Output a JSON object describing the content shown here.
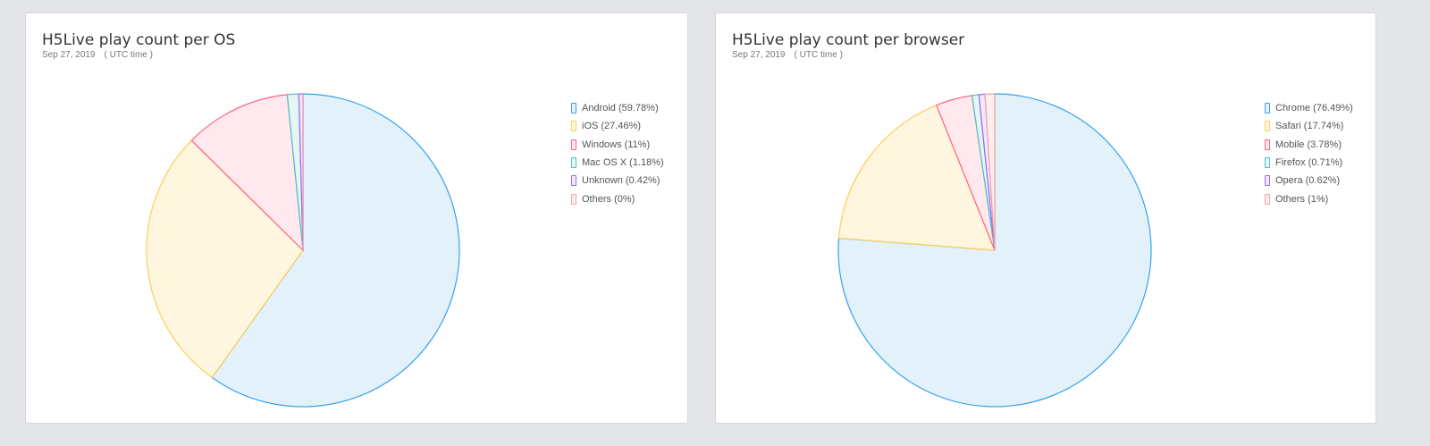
{
  "chart_data": [
    {
      "type": "pie",
      "title": "H5Live play count per OS",
      "date": "Sep 27, 2019",
      "timezone": "( UTC time )",
      "legend_position": "right",
      "categories": [
        "Android",
        "iOS",
        "Windows",
        "Mac OS X",
        "Unknown",
        "Others"
      ],
      "values": [
        59.78,
        27.46,
        11,
        1.18,
        0.42,
        0
      ],
      "legend": [
        "Android (59.78%)",
        "iOS (27.46%)",
        "Windows (11%)",
        "Mac OS X (1.18%)",
        "Unknown (0.42%)",
        "Others (0%)"
      ]
    },
    {
      "type": "pie",
      "title": "H5Live play count per browser",
      "date": "Sep 27, 2019",
      "timezone": "( UTC time )",
      "legend_position": "right",
      "categories": [
        "Chrome",
        "Safari",
        "Mobile",
        "Firefox",
        "Opera",
        "Others"
      ],
      "values": [
        76.49,
        17.74,
        3.78,
        0.71,
        0.62,
        1
      ],
      "legend": [
        "Chrome (76.49%)",
        "Safari (17.74%)",
        "Mobile (3.78%)",
        "Firefox (0.71%)",
        "Opera (0.62%)",
        "Others (1%)"
      ]
    }
  ],
  "colors": {
    "stroke": [
      "#36a2eb",
      "#ffcd56",
      "#ff6384",
      "#4bc0c0",
      "#9966ff",
      "#ff9f9f"
    ],
    "fill": [
      "#e3f1fb",
      "#fff6df",
      "#ffe9ee",
      "#e6f6f6",
      "#f0eaff",
      "#ffeeee"
    ]
  }
}
